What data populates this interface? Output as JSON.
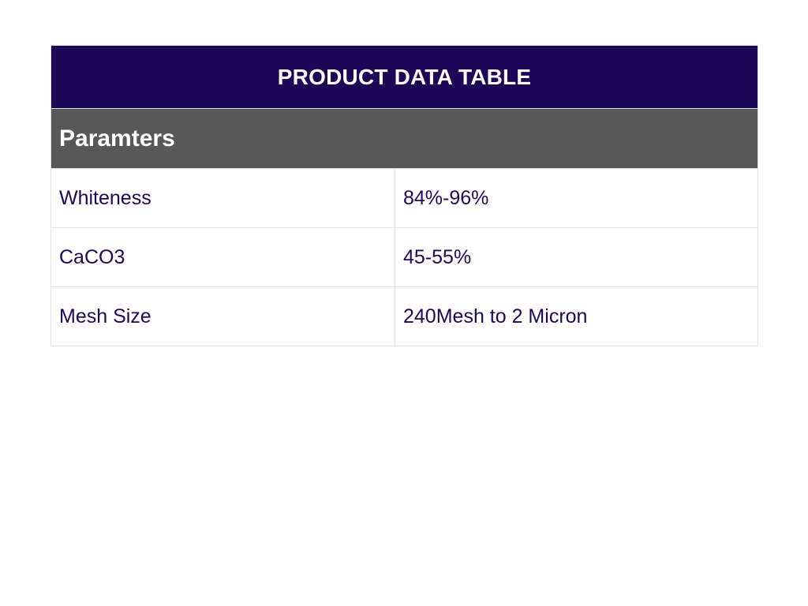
{
  "colors": {
    "header_bg": "#1f0757",
    "section_bg": "#585858",
    "row_text": "#1f0757"
  },
  "table": {
    "title": "PRODUCT DATA TABLE",
    "section": "Paramters",
    "rows": [
      {
        "param": "Whiteness",
        "value": "84%-96%"
      },
      {
        "param": "CaCO3",
        "value": "45-55%"
      },
      {
        "param": "Mesh Size",
        "value": "240Mesh to 2 Micron"
      }
    ]
  }
}
